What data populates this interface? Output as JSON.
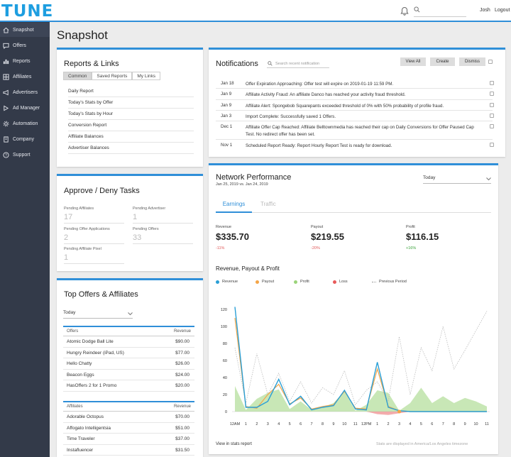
{
  "app": {
    "logo": "TUNE",
    "user": "Josh",
    "logout": "Logout"
  },
  "sidebar": {
    "items": [
      {
        "label": "Snapshot",
        "icon": "home-icon"
      },
      {
        "label": "Offers",
        "icon": "chat-icon"
      },
      {
        "label": "Reports",
        "icon": "bar-chart-icon"
      },
      {
        "label": "Affiliates",
        "icon": "grid-icon"
      },
      {
        "label": "Advertisers",
        "icon": "megaphone-icon"
      },
      {
        "label": "Ad Manager",
        "icon": "arrow-icon"
      },
      {
        "label": "Automation",
        "icon": "gear-icon"
      },
      {
        "label": "Company",
        "icon": "building-icon"
      },
      {
        "label": "Support",
        "icon": "help-icon"
      }
    ]
  },
  "page": {
    "title": "Snapshot"
  },
  "reports_links": {
    "title": "Reports & Links",
    "tabs": [
      "Common",
      "Saved Reports",
      "My Links"
    ],
    "items": [
      "Daily Report",
      "Today's Stats by Offer",
      "Today's Stats by Hour",
      "Conversion Report",
      "Affiliate Balances",
      "Advertiser Balances"
    ]
  },
  "approve": {
    "title": "Approve / Deny Tasks",
    "tasks": [
      {
        "label": "Pending Affiliates",
        "value": "17"
      },
      {
        "label": "Pending Advertiser",
        "value": "1"
      },
      {
        "label": "Pending Offer Applications",
        "value": "2"
      },
      {
        "label": "Pending Offers",
        "value": "33"
      },
      {
        "label": "Pending Affiliate Pixel",
        "value": "1"
      }
    ]
  },
  "top_offers": {
    "title": "Top Offers & Affiliates",
    "period": "Today",
    "offers_header": "Offers",
    "revenue_header": "Revenue",
    "offers": [
      {
        "name": "Atomic Dodge Ball Lite",
        "revenue": "$90.00"
      },
      {
        "name": "Hungry Reindeer (iPad, US)",
        "revenue": "$77.00"
      },
      {
        "name": "Hello Chatty",
        "revenue": "$26.00"
      },
      {
        "name": "Beacon Eggs",
        "revenue": "$24.00"
      },
      {
        "name": "HasOffers 2 for 1 Promo",
        "revenue": "$20.00"
      }
    ],
    "affiliates_header": "Affiliates",
    "affiliates": [
      {
        "name": "Adorable Octopus",
        "revenue": "$70.00"
      },
      {
        "name": "Affogato Intelligentsia",
        "revenue": "$51.00"
      },
      {
        "name": "Time Traveler",
        "revenue": "$37.00"
      },
      {
        "name": "Instafluencer",
        "revenue": "$31.50"
      }
    ]
  },
  "notifications": {
    "title": "Notifications",
    "search_placeholder": "Search recent notification",
    "buttons": {
      "view_all": "View All",
      "create": "Create",
      "dismiss": "Dismiss"
    },
    "items": [
      {
        "date": "Jan 18",
        "text": "Offer Expiration Approaching: Offer test will expire on 2019-01-19 11:59 PM."
      },
      {
        "date": "Jan 9",
        "text": "Affiliate Activity Fraud: An affiliate Danco has reached your activity fraud threshold."
      },
      {
        "date": "Jan 9",
        "text": "Affiliate Alert: Spongebob Squarepants exceeded threshold of 0% with 50% probability of profile fraud."
      },
      {
        "date": "Jan 3",
        "text": "Import Complete: Successfully saved 1 Offers."
      },
      {
        "date": "Dec 1",
        "text": "Affiliate Offer Cap Reached: Affiliate Belltownmedia has reached their cap on Daily Conversions for Offer Paused Cap Test. No redirect offer has been set."
      },
      {
        "date": "Nov 1",
        "text": "Scheduled Report Ready: Report Hourly Report Test is ready for download."
      }
    ]
  },
  "network": {
    "title": "Network Performance",
    "subtitle": "Jan 25, 2019 vs. Jan 24, 2019",
    "period": "Today",
    "tabs": [
      "Earnings",
      "Traffic"
    ],
    "kpis": [
      {
        "label": "Revenue",
        "value": "$335.70",
        "delta": "-11%"
      },
      {
        "label": "Payout",
        "value": "$219.55",
        "delta": "-20%"
      },
      {
        "label": "Profit",
        "value": "$116.15",
        "delta": "+16%"
      }
    ],
    "chart_title": "Revenue, Payout & Profit",
    "footer_link": "View in stats report",
    "footer_note": "Stats are displayed in America/Los Angeles timezone",
    "colors": {
      "revenue": "#2a9fd6",
      "payout": "#f4a547",
      "profit": "#9bd47a",
      "loss": "#e85a5a",
      "previous": "#bbbbbb",
      "accent": "#2f8fd8"
    }
  },
  "chart_data": {
    "type": "line",
    "title": "Revenue, Payout & Profit",
    "x": [
      "12AM",
      "1",
      "2",
      "3",
      "4",
      "5",
      "6",
      "7",
      "8",
      "9",
      "10",
      "11",
      "12PM",
      "1",
      "2",
      "3",
      "4",
      "5",
      "6",
      "7",
      "8",
      "9",
      "10",
      "11"
    ],
    "y_ticks": [
      0,
      20,
      40,
      60,
      80,
      100,
      120
    ],
    "ylim": [
      0,
      125
    ],
    "legend": [
      "Revenue",
      "Payout",
      "Profit",
      "Loss",
      "Previous Period"
    ],
    "legend_position": "top",
    "series": [
      {
        "name": "Revenue",
        "values": [
          123,
          5,
          5,
          12,
          38,
          8,
          18,
          2,
          5,
          7,
          25,
          3,
          2,
          58,
          5,
          1,
          0,
          0,
          0,
          0,
          0,
          0,
          0,
          0
        ]
      },
      {
        "name": "Payout",
        "values": [
          110,
          6,
          4,
          20,
          32,
          9,
          16,
          3,
          6,
          8,
          24,
          4,
          3,
          50,
          6,
          1,
          0,
          0,
          0,
          0,
          0,
          0,
          0,
          0
        ]
      },
      {
        "name": "Profit",
        "values": [
          30,
          2,
          15,
          22,
          26,
          3,
          12,
          2,
          5,
          10,
          24,
          1,
          8,
          25,
          22,
          1,
          10,
          28,
          10,
          18,
          10,
          16,
          12,
          6
        ]
      },
      {
        "name": "Loss",
        "values": [
          0,
          0,
          0,
          0,
          0,
          0,
          0,
          0,
          0,
          0,
          0,
          0,
          0,
          -3,
          -4,
          -2,
          0,
          0,
          0,
          0,
          0,
          0,
          0,
          0
        ]
      },
      {
        "name": "Previous Period",
        "values": [
          75,
          10,
          68,
          20,
          45,
          12,
          35,
          10,
          28,
          20,
          48,
          8,
          25,
          35,
          12,
          88,
          20,
          75,
          48,
          100,
          50,
          72,
          95,
          118
        ]
      }
    ]
  }
}
